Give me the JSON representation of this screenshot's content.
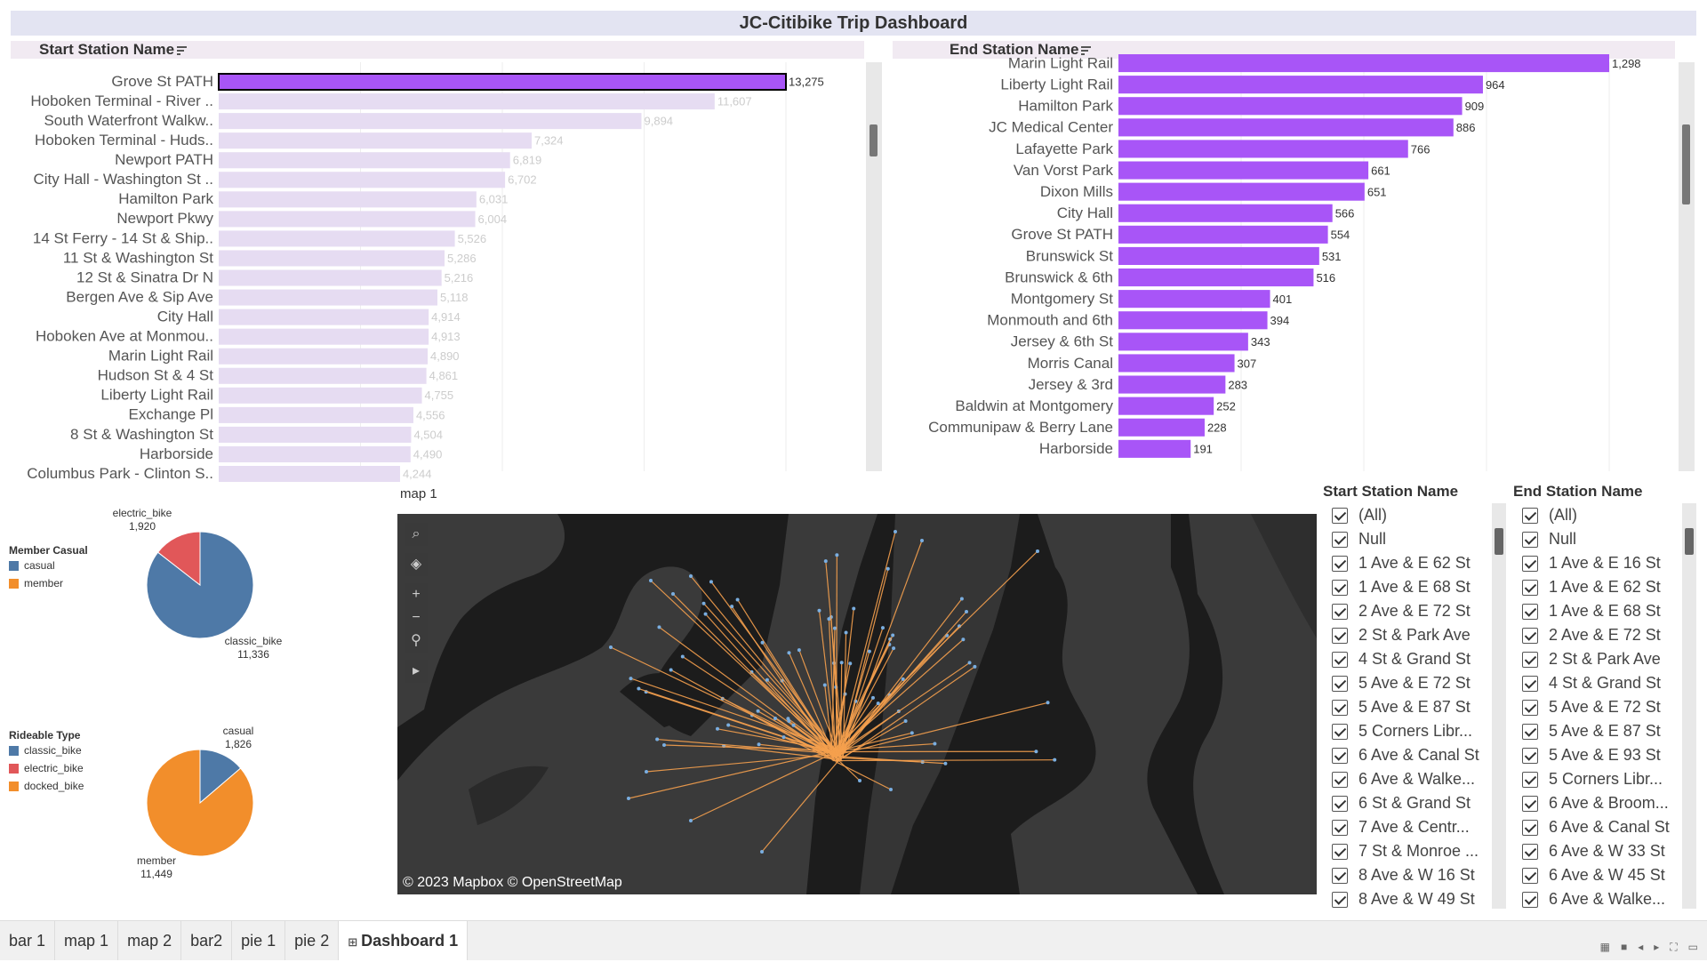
{
  "title": "JC-Citibike Trip Dashboard",
  "start_bar": {
    "header": "Start Station Name",
    "chart_data": {
      "type": "bar",
      "orientation": "horizontal",
      "categories": [
        "Grove St PATH",
        "Hoboken Terminal - River ..",
        "South Waterfront Walkw..",
        "Hoboken Terminal - Huds..",
        "Newport PATH",
        "City Hall - Washington St ..",
        "Hamilton Park",
        "Newport Pkwy",
        "14 St Ferry - 14 St & Ship..",
        "11 St & Washington St",
        "12 St & Sinatra Dr N",
        "Bergen Ave & Sip Ave",
        "City Hall",
        "Hoboken Ave at Monmou..",
        "Marin Light Rail",
        "Hudson St & 4 St",
        "Liberty Light Rail",
        "Exchange Pl",
        "8 St & Washington St",
        "Harborside",
        "Columbus Park - Clinton S.."
      ],
      "values": [
        13275,
        11607,
        9894,
        7324,
        6819,
        6702,
        6031,
        6004,
        5526,
        5286,
        5216,
        5118,
        4914,
        4913,
        4890,
        4861,
        4755,
        4556,
        4504,
        4490,
        4244
      ],
      "value_labels": [
        "13,275",
        "11,607",
        "9,894",
        "7,324",
        "6,819",
        "6,702",
        "6,031",
        "6,004",
        "5,526",
        "5,286",
        "5,216",
        "5,118",
        "4,914",
        "4,913",
        "4,890",
        "4,861",
        "4,755",
        "4,556",
        "4,504",
        "4,490",
        "4,244"
      ],
      "highlighted_index": 0,
      "colors": {
        "highlight": "#a855f7",
        "dim": "#e6dcf2"
      },
      "grid": true
    }
  },
  "end_bar": {
    "header": "End Station Name",
    "chart_data": {
      "type": "bar",
      "orientation": "horizontal",
      "categories": [
        "Marin Light Rail",
        "Liberty Light Rail",
        "Hamilton Park",
        "JC Medical Center",
        "Lafayette Park",
        "Van Vorst Park",
        "Dixon Mills",
        "City Hall",
        "Grove St PATH",
        "Brunswick St",
        "Brunswick & 6th",
        "Montgomery St",
        "Monmouth and 6th",
        "Jersey & 6th St",
        "Morris Canal",
        "Jersey & 3rd",
        "Baldwin at Montgomery",
        "Communipaw & Berry Lane",
        "Harborside"
      ],
      "values": [
        1298,
        964,
        909,
        886,
        766,
        661,
        651,
        566,
        554,
        531,
        516,
        401,
        394,
        343,
        307,
        283,
        252,
        228,
        191
      ],
      "value_labels": [
        "1,298",
        "964",
        "909",
        "886",
        "766",
        "661",
        "651",
        "566",
        "554",
        "531",
        "516",
        "401",
        "394",
        "343",
        "307",
        "283",
        "252",
        "228",
        "191"
      ],
      "colors": {
        "bar": "#a855f7"
      },
      "grid": true
    }
  },
  "pie_member": {
    "legend_title": "Member Casual",
    "legend": [
      {
        "label": "casual",
        "color": "#4e79a7"
      },
      {
        "label": "member",
        "color": "#f28e2b"
      }
    ],
    "chart_data": {
      "type": "pie",
      "slices": [
        {
          "name": "classic_bike",
          "value": 11336,
          "label": "11,336",
          "color": "#4e79a7"
        },
        {
          "name": "electric_bike",
          "value": 1920,
          "label": "1,920",
          "color": "#e15759"
        }
      ]
    }
  },
  "pie_rideable": {
    "legend_title": "Rideable Type",
    "legend": [
      {
        "label": "classic_bike",
        "color": "#4e79a7"
      },
      {
        "label": "electric_bike",
        "color": "#e15759"
      },
      {
        "label": "docked_bike",
        "color": "#f28e2b"
      }
    ],
    "chart_data": {
      "type": "pie",
      "slices": [
        {
          "name": "member",
          "value": 11449,
          "label": "11,449",
          "color": "#f28e2b"
        },
        {
          "name": "casual",
          "value": 1826,
          "label": "1,826",
          "color": "#4e79a7"
        }
      ]
    }
  },
  "map": {
    "label": "map 1",
    "attribution": "© 2023 Mapbox © OpenStreetMap",
    "tools": [
      "search-icon",
      "layers-icon",
      "zoom-in-icon",
      "zoom-out-icon",
      "pin-icon",
      "play-icon"
    ],
    "colors": {
      "water": "#1c1c1c",
      "land": "#3d3d3d",
      "line": "#f59f4a"
    }
  },
  "start_filter": {
    "title": "Start Station Name",
    "items": [
      "(All)",
      "Null",
      "1 Ave & E 62 St",
      "1 Ave & E 68 St",
      "2 Ave & E 72 St",
      "2 St & Park Ave",
      "4 St & Grand St",
      "5 Ave & E 72 St",
      "5 Ave & E 87 St",
      "5 Corners Libr...",
      "6 Ave & Canal St",
      "6 Ave & Walke...",
      "6 St & Grand St",
      "7 Ave & Centr...",
      "7 St & Monroe ...",
      "8 Ave & W 16 St",
      "8 Ave & W 49 St"
    ]
  },
  "end_filter": {
    "title": "End Station Name",
    "items": [
      "(All)",
      "Null",
      "1 Ave & E 16 St",
      "1 Ave & E 62 St",
      "1 Ave & E 68 St",
      "2 Ave & E 72 St",
      "2 St & Park Ave",
      "4 St & Grand St",
      "5 Ave & E 72 St",
      "5 Ave & E 87 St",
      "5 Ave & E 93 St",
      "5 Corners Libr...",
      "6 Ave & Broom...",
      "6 Ave & Canal St",
      "6 Ave & W 33 St",
      "6 Ave & W 45 St",
      "6 Ave & Walke..."
    ]
  },
  "tabs": [
    "bar 1",
    "map 1",
    "map 2",
    "bar2",
    "pie 1",
    "pie 2",
    "Dashboard 1"
  ],
  "active_tab": "Dashboard 1"
}
